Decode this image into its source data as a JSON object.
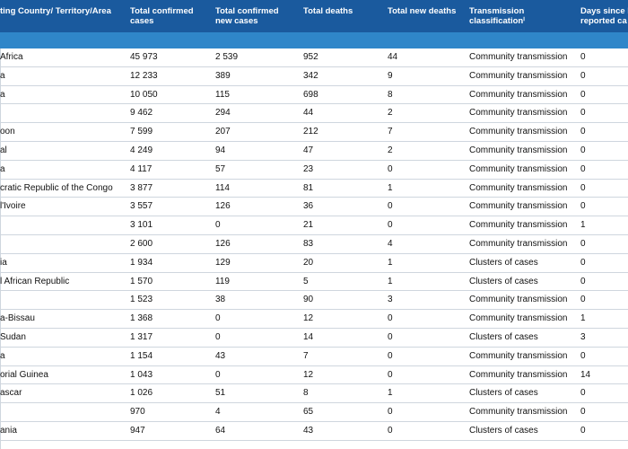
{
  "header": {
    "col0": "ting Country/ Territory/Area",
    "col1": [
      "Total confirmed",
      "cases"
    ],
    "col2": [
      "Total confirmed",
      "new cases"
    ],
    "col3": "Total deaths",
    "col4": "Total new deaths",
    "col5": [
      "Transmission",
      "classificationⁱ"
    ],
    "col6": [
      "Days since l",
      "reported ca"
    ]
  },
  "colors": {
    "header_bg": "#1a5a9e",
    "region_band": "#2f86c9",
    "row_divider": "#cfd6de"
  },
  "rows": [
    {
      "name": "Africa",
      "cases": "45 973",
      "new_cases": "2 539",
      "deaths": "952",
      "new_deaths": "44",
      "classification": "Community transmission",
      "days": "0"
    },
    {
      "name": "a",
      "cases": "12 233",
      "new_cases": "389",
      "deaths": "342",
      "new_deaths": "9",
      "classification": "Community transmission",
      "days": "0"
    },
    {
      "name": "a",
      "cases": "10 050",
      "new_cases": "115",
      "deaths": "698",
      "new_deaths": "8",
      "classification": "Community transmission",
      "days": "0"
    },
    {
      "name": "",
      "cases": "9 462",
      "new_cases": "294",
      "deaths": "44",
      "new_deaths": "2",
      "classification": "Community transmission",
      "days": "0"
    },
    {
      "name": "oon",
      "cases": "7 599",
      "new_cases": "207",
      "deaths": "212",
      "new_deaths": "7",
      "classification": "Community transmission",
      "days": "0"
    },
    {
      "name": "al",
      "cases": "4 249",
      "new_cases": "94",
      "deaths": "47",
      "new_deaths": "2",
      "classification": "Community transmission",
      "days": "0"
    },
    {
      "name": "a",
      "cases": "4 117",
      "new_cases": "57",
      "deaths": "23",
      "new_deaths": "0",
      "classification": "Community transmission",
      "days": "0"
    },
    {
      "name": "cratic Republic of the Congo",
      "cases": "3 877",
      "new_cases": "114",
      "deaths": "81",
      "new_deaths": "1",
      "classification": "Community transmission",
      "days": "0"
    },
    {
      "name": "l'Ivoire",
      "cases": "3 557",
      "new_cases": "126",
      "deaths": "36",
      "new_deaths": "0",
      "classification": "Community transmission",
      "days": "0"
    },
    {
      "name": "",
      "cases": "3 101",
      "new_cases": "0",
      "deaths": "21",
      "new_deaths": "0",
      "classification": "Community transmission",
      "days": "1"
    },
    {
      "name": "",
      "cases": "2 600",
      "new_cases": "126",
      "deaths": "83",
      "new_deaths": "4",
      "classification": "Community transmission",
      "days": "0"
    },
    {
      "name": "ia",
      "cases": "1 934",
      "new_cases": "129",
      "deaths": "20",
      "new_deaths": "1",
      "classification": "Clusters of cases",
      "days": "0"
    },
    {
      "name": "l African Republic",
      "cases": "1 570",
      "new_cases": "119",
      "deaths": "5",
      "new_deaths": "1",
      "classification": "Clusters of cases",
      "days": "0"
    },
    {
      "name": "",
      "cases": "1 523",
      "new_cases": "38",
      "deaths": "90",
      "new_deaths": "3",
      "classification": "Community transmission",
      "days": "0"
    },
    {
      "name": "a-Bissau",
      "cases": "1 368",
      "new_cases": "0",
      "deaths": "12",
      "new_deaths": "0",
      "classification": "Community transmission",
      "days": "1"
    },
    {
      "name": "Sudan",
      "cases": "1 317",
      "new_cases": "0",
      "deaths": "14",
      "new_deaths": "0",
      "classification": "Clusters of cases",
      "days": "3"
    },
    {
      "name": "a",
      "cases": "1 154",
      "new_cases": "43",
      "deaths": "7",
      "new_deaths": "0",
      "classification": "Community transmission",
      "days": "0"
    },
    {
      "name": "orial Guinea",
      "cases": "1 043",
      "new_cases": "0",
      "deaths": "12",
      "new_deaths": "0",
      "classification": "Community transmission",
      "days": "14"
    },
    {
      "name": "ascar",
      "cases": "1 026",
      "new_cases": "51",
      "deaths": "8",
      "new_deaths": "1",
      "classification": "Clusters of cases",
      "days": "0"
    },
    {
      "name": "",
      "cases": "970",
      "new_cases": "4",
      "deaths": "65",
      "new_deaths": "0",
      "classification": "Community transmission",
      "days": "0"
    },
    {
      "name": "ania",
      "cases": "947",
      "new_cases": "64",
      "deaths": "43",
      "new_deaths": "0",
      "classification": "Clusters of cases",
      "days": "0"
    }
  ]
}
